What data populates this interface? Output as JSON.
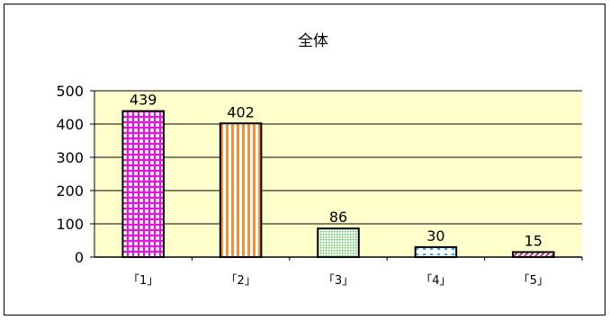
{
  "chart_data": {
    "type": "bar",
    "title": "全体",
    "categories": [
      "「1」",
      "「2」",
      "「3」",
      "「4」",
      "「5」"
    ],
    "values": [
      439,
      402,
      86,
      30,
      15
    ],
    "data_labels": [
      "439",
      "402",
      "86",
      "30",
      "15"
    ],
    "ylim": [
      0,
      500
    ],
    "yticks": [
      "0",
      "100",
      "200",
      "300",
      "400",
      "500"
    ],
    "grid": true,
    "legend": "none",
    "plot_background": "#ffffcc",
    "bar_colors": [
      "#ff00ff",
      "#ff8c33",
      "#33cc33",
      "#33aaff",
      "#cc3366"
    ],
    "bar_patterns": [
      "checkered",
      "vertical-stripes",
      "dots",
      "sparse-dots",
      "diagonal"
    ]
  }
}
